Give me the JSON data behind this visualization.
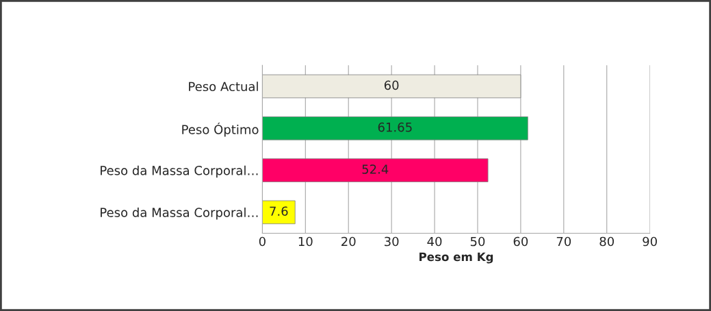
{
  "chart_data": {
    "type": "bar",
    "orientation": "horizontal",
    "xlabel": "Peso em Kg",
    "categories": [
      "Peso Actual",
      "Peso Óptimo",
      "Peso da Massa Corporal…",
      "Peso da Massa Corporal…"
    ],
    "values": [
      60,
      61.65,
      52.4,
      7.6
    ],
    "colors": [
      "#eeece1",
      "#00b050",
      "#ff0066",
      "#ffff00"
    ],
    "xlim": [
      0,
      90
    ],
    "xticks": [
      0,
      10,
      20,
      30,
      40,
      50,
      60,
      70,
      80,
      90
    ],
    "grid": "x",
    "data_labels": true,
    "legend": false
  }
}
